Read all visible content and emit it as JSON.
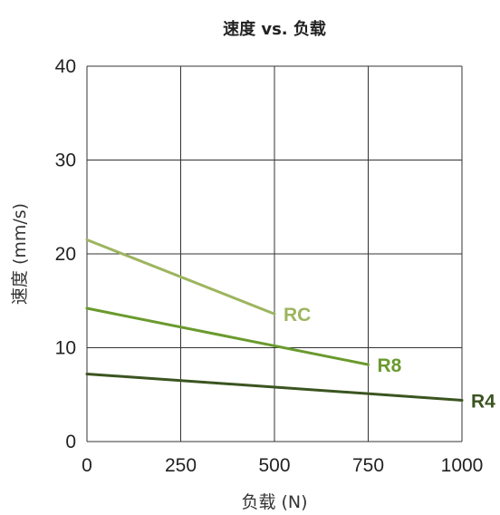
{
  "chart_data": {
    "type": "line",
    "title": "速度 vs. 负载",
    "xlabel": "负载 (N)",
    "ylabel": "速度 (mm/s)",
    "xlim": [
      0,
      1000
    ],
    "ylim": [
      0,
      40
    ],
    "xticks": [
      "0",
      "250",
      "500",
      "750",
      "1000"
    ],
    "yticks": [
      "0",
      "10",
      "20",
      "30",
      "40"
    ],
    "grid": true,
    "legend": "labels at line ends",
    "series": [
      {
        "name": "RC",
        "color": "#9db55f",
        "x": [
          0,
          500
        ],
        "y": [
          21.5,
          13.6
        ]
      },
      {
        "name": "R8",
        "color": "#6a9a2e",
        "x": [
          0,
          750
        ],
        "y": [
          14.2,
          8.2
        ]
      },
      {
        "name": "R4",
        "color": "#3b5420",
        "x": [
          0,
          1000
        ],
        "y": [
          7.2,
          4.4
        ]
      }
    ]
  }
}
